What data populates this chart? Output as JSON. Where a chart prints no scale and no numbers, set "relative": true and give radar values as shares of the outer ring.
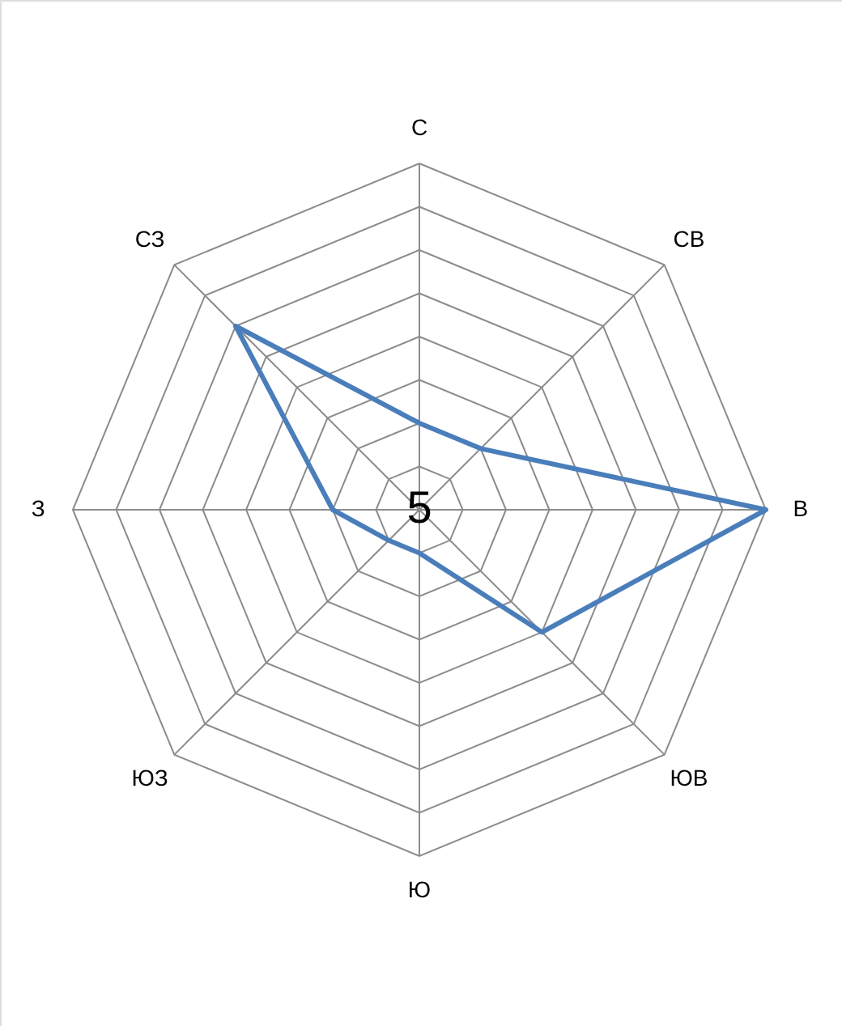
{
  "chart_data": {
    "type": "radar",
    "relative": true,
    "grid": true,
    "categories": [
      "С",
      "СВ",
      "В",
      "ЮВ",
      "Ю",
      "ЮЗ",
      "З",
      "СЗ"
    ],
    "series": [
      {
        "color": "#4a7ebb",
        "values": [
          0.25,
          0.25,
          1,
          0.5,
          0.125,
          0.125,
          0.25,
          0.75
        ]
      }
    ],
    "annotations": [
      "5"
    ]
  }
}
